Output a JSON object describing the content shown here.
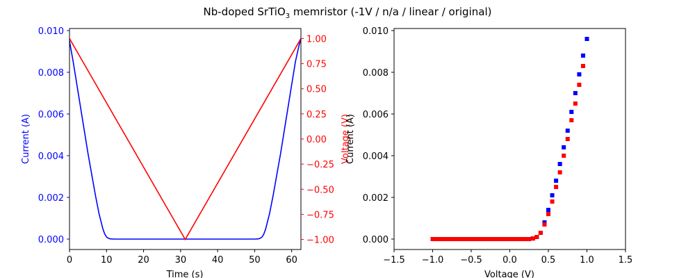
{
  "figure": {
    "title_main": "Nb-doped SrTiO",
    "title_sub": "3",
    "title_rest": " memristor (-1V / n/a / linear / original)"
  },
  "colors": {
    "current": "#0000ff",
    "voltage": "#ff0000",
    "axes": "#000000"
  },
  "chart_data": [
    {
      "type": "line",
      "xlabel": "Time (s)",
      "ylabel_left": "Current (A)",
      "ylabel_right": "Voltage (V)",
      "xlim": [
        0,
        62.5
      ],
      "ylim_left": [
        -0.0005,
        0.0101
      ],
      "ylim_right": [
        -1.1,
        1.1
      ],
      "xticks": [
        "0",
        "10",
        "20",
        "30",
        "40",
        "50",
        "60"
      ],
      "yticks_left": [
        "0.000",
        "0.002",
        "0.004",
        "0.006",
        "0.008",
        "0.010"
      ],
      "yticks_right": [
        "−1.00",
        "−0.75",
        "−0.50",
        "−0.25",
        "0.00",
        "0.25",
        "0.50",
        "0.75",
        "1.00"
      ],
      "series": [
        {
          "axis": "left",
          "color": "#0000ff",
          "x": [
            0,
            1,
            2,
            3,
            4,
            5,
            6,
            7,
            8,
            9,
            9.5,
            10,
            10.5,
            11,
            12,
            14,
            20,
            30,
            40,
            50,
            51,
            51.5,
            52,
            52.5,
            53,
            54,
            55,
            56,
            57,
            58,
            59,
            60,
            61,
            62,
            62.5
          ],
          "y": [
            0.0095,
            0.0085,
            0.0074,
            0.0063,
            0.0052,
            0.0041,
            0.0031,
            0.0021,
            0.0012,
            0.0005,
            0.00025,
            0.0001,
            4e-05,
            1e-05,
            0,
            0,
            0,
            0,
            0,
            0,
            1e-05,
            4e-05,
            0.0001,
            0.00025,
            0.0005,
            0.0012,
            0.0021,
            0.0031,
            0.0041,
            0.0052,
            0.0063,
            0.0074,
            0.0085,
            0.0093,
            0.0096
          ]
        },
        {
          "axis": "right",
          "color": "#ff0000",
          "x": [
            0,
            31.25,
            62.5
          ],
          "y": [
            1.0,
            -1.0,
            1.0
          ]
        }
      ]
    },
    {
      "type": "scatter",
      "xlabel": "Voltage (V)",
      "ylabel": "Current (A)",
      "xlim": [
        -1.5,
        1.5
      ],
      "ylim": [
        -0.0005,
        0.0101
      ],
      "xticks": [
        "−1.5",
        "−1.0",
        "−0.5",
        "0.0",
        "0.5",
        "1.0",
        "1.5"
      ],
      "yticks": [
        "0.000",
        "0.002",
        "0.004",
        "0.006",
        "0.008",
        "0.010"
      ],
      "series": [
        {
          "color": "#0000ff",
          "x": [
            -1.0,
            -0.9,
            -0.8,
            -0.7,
            -0.6,
            -0.5,
            -0.4,
            -0.3,
            -0.2,
            -0.1,
            0.0,
            0.1,
            0.2,
            0.3,
            0.35,
            0.4,
            0.45,
            0.5,
            0.55,
            0.6,
            0.65,
            0.7,
            0.75,
            0.8,
            0.85,
            0.9,
            0.95,
            1.0
          ],
          "y": [
            0,
            0,
            0,
            0,
            0,
            0,
            0,
            0,
            0,
            0,
            0,
            0,
            0,
            3e-05,
            0.0001,
            0.0003,
            0.0008,
            0.0014,
            0.0021,
            0.0028,
            0.0036,
            0.0044,
            0.0052,
            0.0061,
            0.007,
            0.0079,
            0.0088,
            0.0096
          ]
        },
        {
          "color": "#ff0000",
          "x": [
            -1.0,
            -0.95,
            -0.9,
            -0.85,
            -0.8,
            -0.75,
            -0.7,
            -0.65,
            -0.6,
            -0.55,
            -0.5,
            -0.45,
            -0.4,
            -0.35,
            -0.3,
            -0.25,
            -0.2,
            -0.15,
            -0.1,
            -0.05,
            0.0,
            0.05,
            0.1,
            0.15,
            0.2,
            0.25,
            0.3,
            0.35,
            0.4,
            0.45,
            0.5,
            0.55,
            0.6,
            0.65,
            0.7,
            0.75,
            0.8,
            0.85,
            0.9,
            0.95
          ],
          "y": [
            0,
            0,
            0,
            0,
            0,
            0,
            0,
            0,
            0,
            0,
            0,
            0,
            0,
            0,
            0,
            0,
            0,
            0,
            0,
            0,
            0,
            0,
            0,
            0,
            0,
            0,
            3e-05,
            0.0001,
            0.0003,
            0.0007,
            0.0012,
            0.0018,
            0.0025,
            0.0032,
            0.004,
            0.0048,
            0.0057,
            0.0065,
            0.0074,
            0.0083
          ]
        }
      ]
    }
  ]
}
